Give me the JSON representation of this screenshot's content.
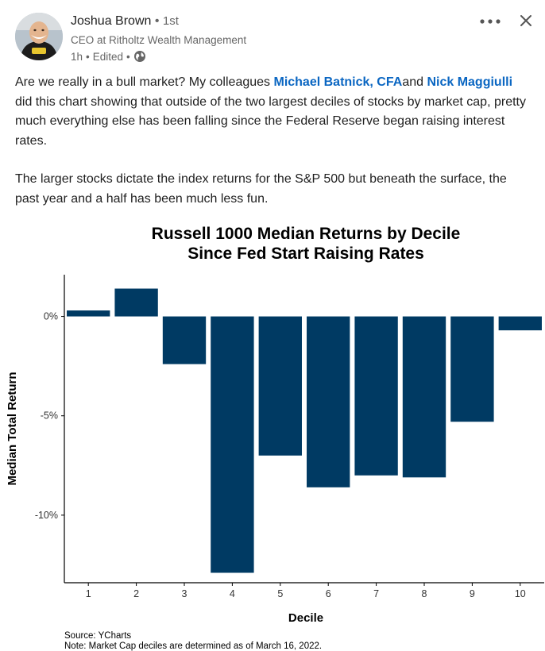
{
  "post": {
    "author_name": "Joshua Brown",
    "connection_degree": "1st",
    "author_headline": "CEO at Ritholtz Wealth Management",
    "time_ago": "1h",
    "edited_label": "Edited",
    "icons": {
      "avatar": "avatar",
      "visibility": "globe-icon",
      "more": "more-horizontal-icon",
      "close": "close-icon"
    },
    "body": {
      "p1_start": "Are we really in a bull market? My colleagues ",
      "mention1": "Michael Batnick, CFA",
      "p1_and": "and ",
      "mention2": "Nick Maggiulli",
      "p1_end": " did this chart showing that outside of the two largest deciles of stocks by market cap, pretty much everything else has been falling since the Federal Reserve began raising interest rates.",
      "p2": "The larger stocks dictate the index returns for the S&P 500 but beneath the surface, the past year and a half has been much less fun."
    },
    "colors": {
      "mention": "#0a66c2",
      "bar": "#003a63"
    }
  },
  "chart_data": {
    "type": "bar",
    "title_line1": "Russell 1000 Median Returns by Decile",
    "title_line2": "Since Fed Start Raising Rates",
    "xlabel": "Decile",
    "ylabel": "Median Total Return",
    "categories": [
      "1",
      "2",
      "3",
      "4",
      "5",
      "6",
      "7",
      "8",
      "9",
      "10"
    ],
    "values": [
      0.3,
      1.4,
      -2.4,
      -12.9,
      -7.0,
      -8.6,
      -8.0,
      -8.1,
      -5.3,
      -0.7
    ],
    "ylim": [
      -13.4,
      2.1
    ],
    "y_ticks": [
      0,
      -5,
      -10
    ],
    "y_tick_labels": [
      "0%",
      "-5%",
      "-10%"
    ],
    "grid": false,
    "source": "Source: YCharts",
    "note": "Note: Market Cap deciles are determined as of March 16, 2022."
  }
}
